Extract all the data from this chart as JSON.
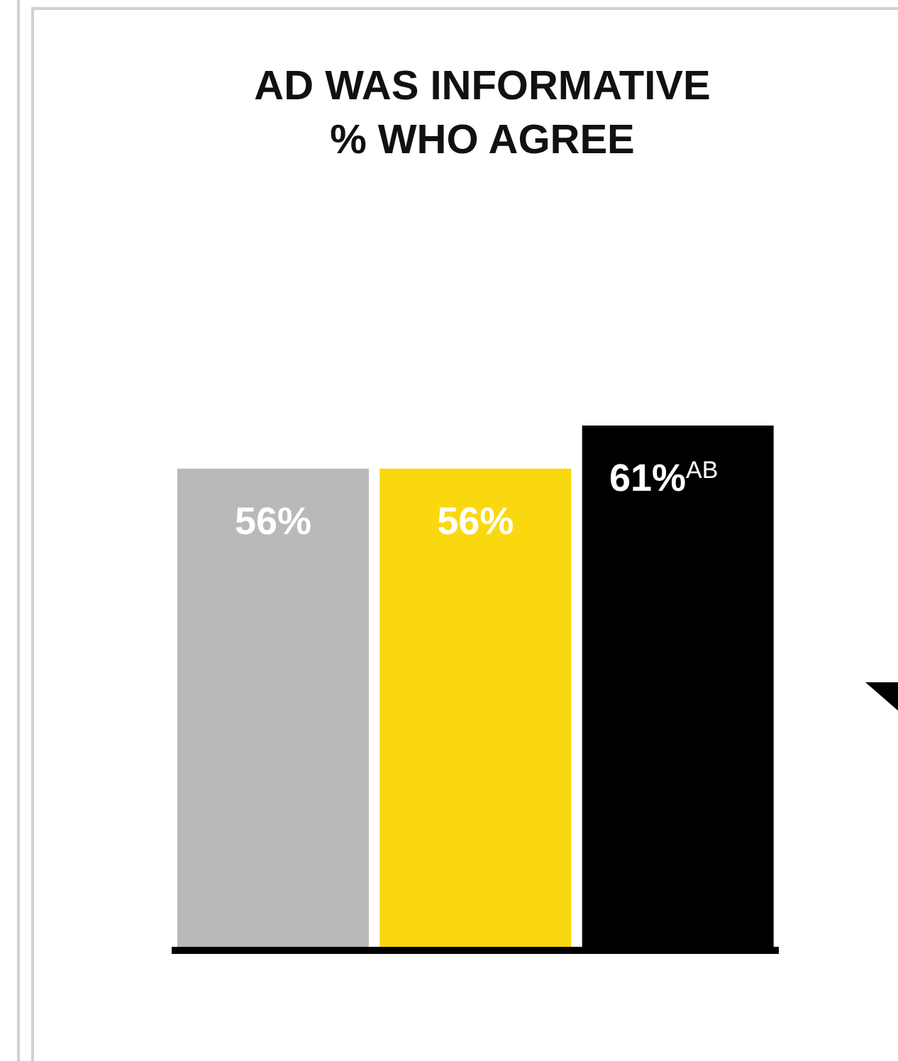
{
  "chart_data": {
    "type": "bar",
    "title": "AD WAS INFORMATIVE\n% WHO AGREE",
    "categories": [
      null,
      null,
      null
    ],
    "values": [
      56,
      56,
      61
    ],
    "colors": [
      "#b9b9b9",
      "#fad80f",
      "#000000"
    ],
    "value_labels": [
      "56%",
      "56%",
      "61%$^{AB}$"
    ],
    "tick_labels": false
  }
}
